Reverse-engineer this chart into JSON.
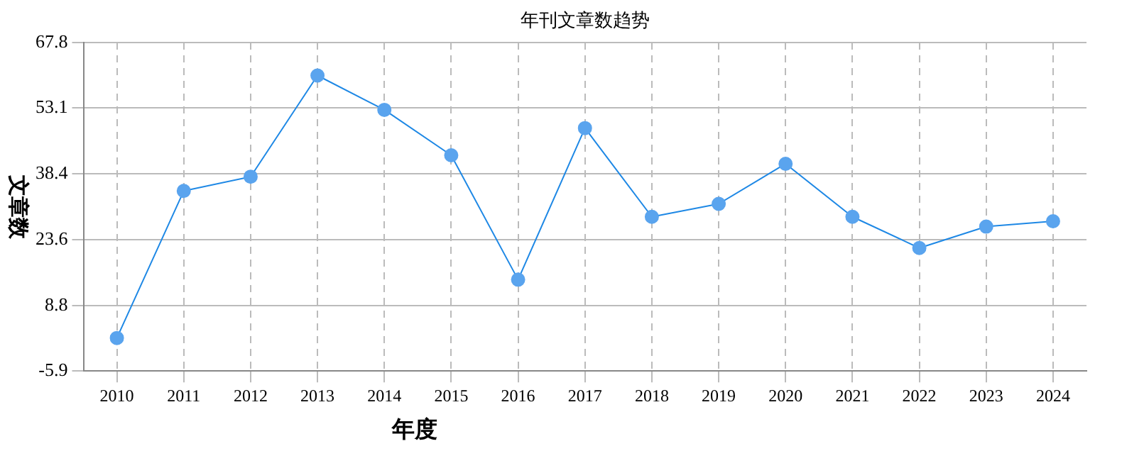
{
  "chart_data": {
    "type": "line",
    "title": "年刊文章数趋势",
    "xlabel": "年度",
    "ylabel": "文章数",
    "categories": [
      "2010",
      "2011",
      "2012",
      "2013",
      "2014",
      "2015",
      "2016",
      "2017",
      "2018",
      "2019",
      "2020",
      "2021",
      "2022",
      "2023",
      "2024"
    ],
    "series": [
      {
        "color": "#1e88e5",
        "values": [
          1.5,
          34.5,
          37.7,
          60.4,
          52.7,
          42.5,
          14.6,
          48.6,
          28.7,
          31.6,
          40.6,
          28.7,
          21.7,
          26.5,
          27.7
        ]
      }
    ],
    "ylim": [
      -5.9,
      67.8
    ],
    "yticks": [
      -5.9,
      8.8,
      23.6,
      38.4,
      53.1,
      67.8
    ],
    "grid": true,
    "marker": "circle",
    "line_style": "solid",
    "legend": false
  }
}
